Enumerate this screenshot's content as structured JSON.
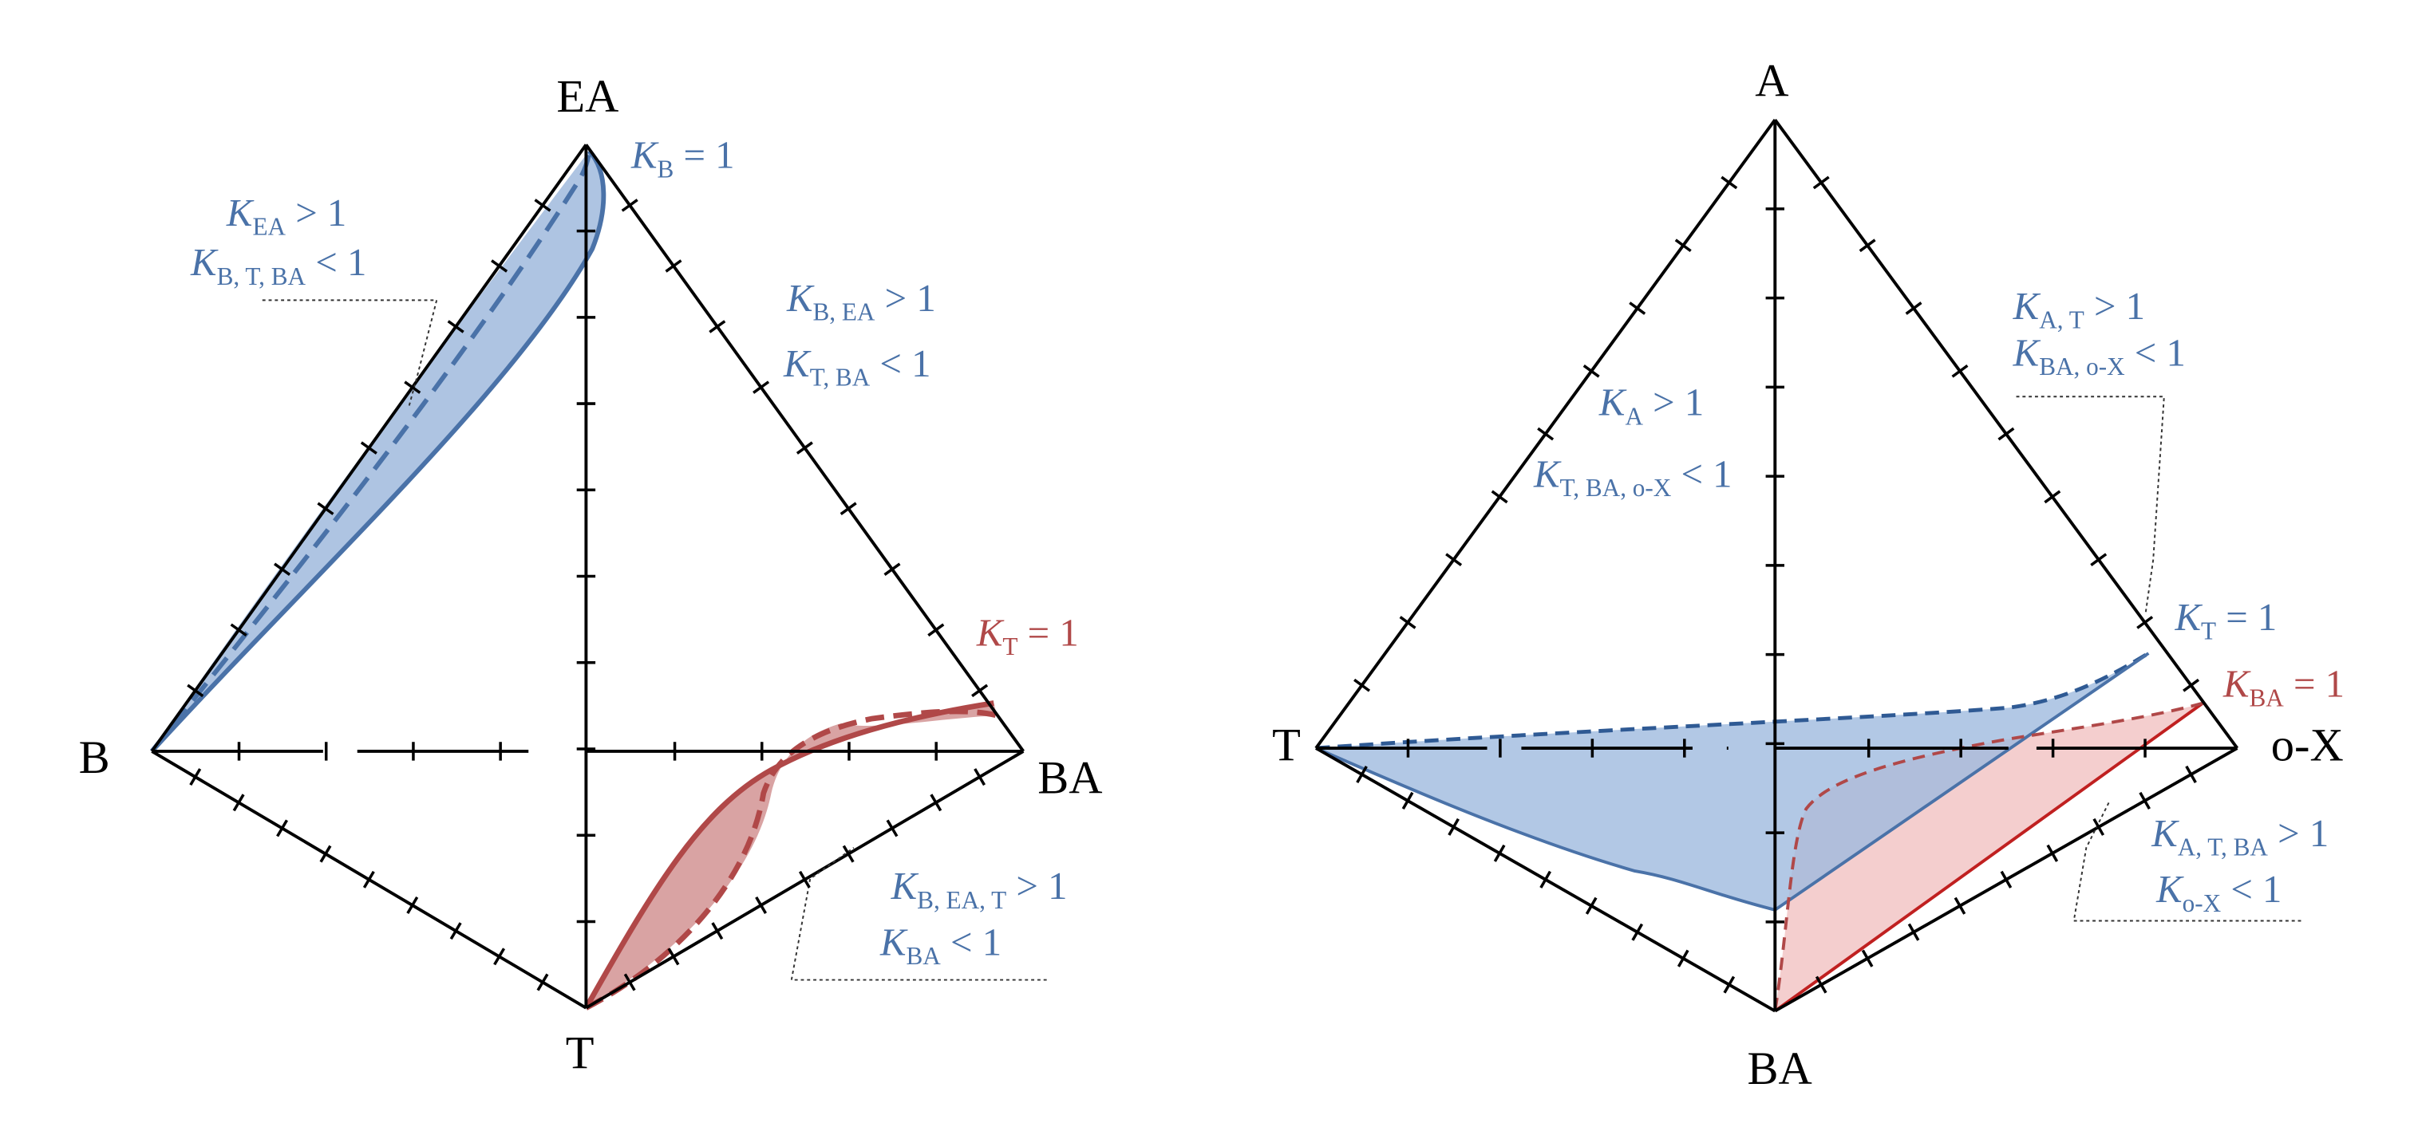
{
  "left_diagram": {
    "vertices": {
      "top": "EA",
      "left": "B",
      "right": "BA",
      "bottom": "T"
    },
    "labels": [
      {
        "symbol": "K",
        "subscript": "B",
        "relation": " = 1"
      },
      {
        "symbol": "K",
        "subscript": "EA",
        "relation": " > 1"
      },
      {
        "symbol": "K",
        "subscript": "B, T, BA",
        "relation": " < 1"
      },
      {
        "symbol": "K",
        "subscript": "B, EA",
        "relation": " > 1"
      },
      {
        "symbol": "K",
        "subscript": "T, BA",
        "relation": " < 1"
      },
      {
        "symbol": "K",
        "subscript": "T",
        "relation": " = 1"
      },
      {
        "symbol": "K",
        "subscript": "B, EA, T",
        "relation": " > 1"
      },
      {
        "symbol": "K",
        "subscript": "BA",
        "relation": " < 1"
      }
    ]
  },
  "right_diagram": {
    "vertices": {
      "top": "A",
      "left": "T",
      "right": "o-X",
      "bottom": "BA"
    },
    "labels": [
      {
        "symbol": "K",
        "subscript": "A",
        "relation": " > 1"
      },
      {
        "symbol": "K",
        "subscript": "T, BA, o-X",
        "relation": " < 1"
      },
      {
        "symbol": "K",
        "subscript": "A, T",
        "relation": " > 1"
      },
      {
        "symbol": "K",
        "subscript": "BA, o-X",
        "relation": " < 1"
      },
      {
        "symbol": "K",
        "subscript": "T",
        "relation": " = 1"
      },
      {
        "symbol": "K",
        "subscript": "BA",
        "relation": " = 1"
      },
      {
        "symbol": "K",
        "subscript": "A, T, BA",
        "relation": " > 1"
      },
      {
        "symbol": "K",
        "subscript": "o-X",
        "relation": " < 1"
      }
    ]
  }
}
